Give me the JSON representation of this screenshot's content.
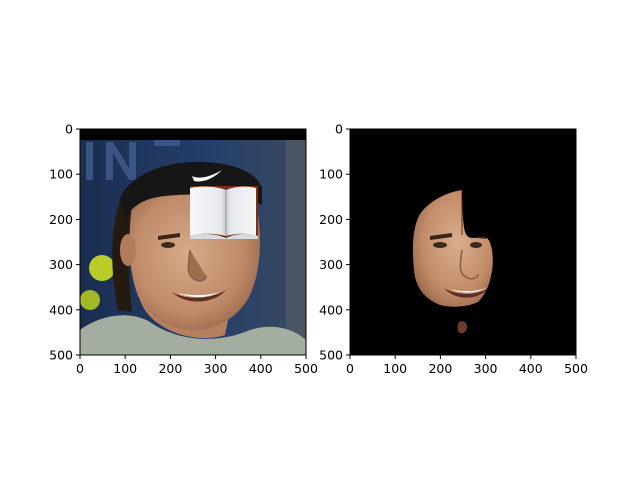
{
  "figure": {
    "background": "#ffffff",
    "panels": [
      {
        "id": "left",
        "content": "photo of a tennis player wearing a black headband, with an open book overlaid on the forehead",
        "x_ticks": [
          "0",
          "100",
          "200",
          "300",
          "400",
          "500"
        ],
        "y_ticks": [
          "0",
          "100",
          "200",
          "300",
          "400",
          "500"
        ],
        "colors": {
          "background_dark_blue": "#1f3357",
          "headband": "#161616",
          "skin": "#c99877",
          "book_page": "#eef0f3",
          "book_cover": "#7a3018",
          "shirt": "#a6b0a2",
          "ball_yellow": "#c8dc2a"
        }
      },
      {
        "id": "right",
        "content": "segmentation mask showing only the face region on black background",
        "x_ticks": [
          "0",
          "100",
          "200",
          "300",
          "400",
          "500"
        ],
        "y_ticks": [
          "0",
          "100",
          "200",
          "300",
          "400",
          "500"
        ],
        "colors": {
          "background": "#000000",
          "skin": "#c99877",
          "blob": "#6d3c2c"
        }
      }
    ]
  }
}
